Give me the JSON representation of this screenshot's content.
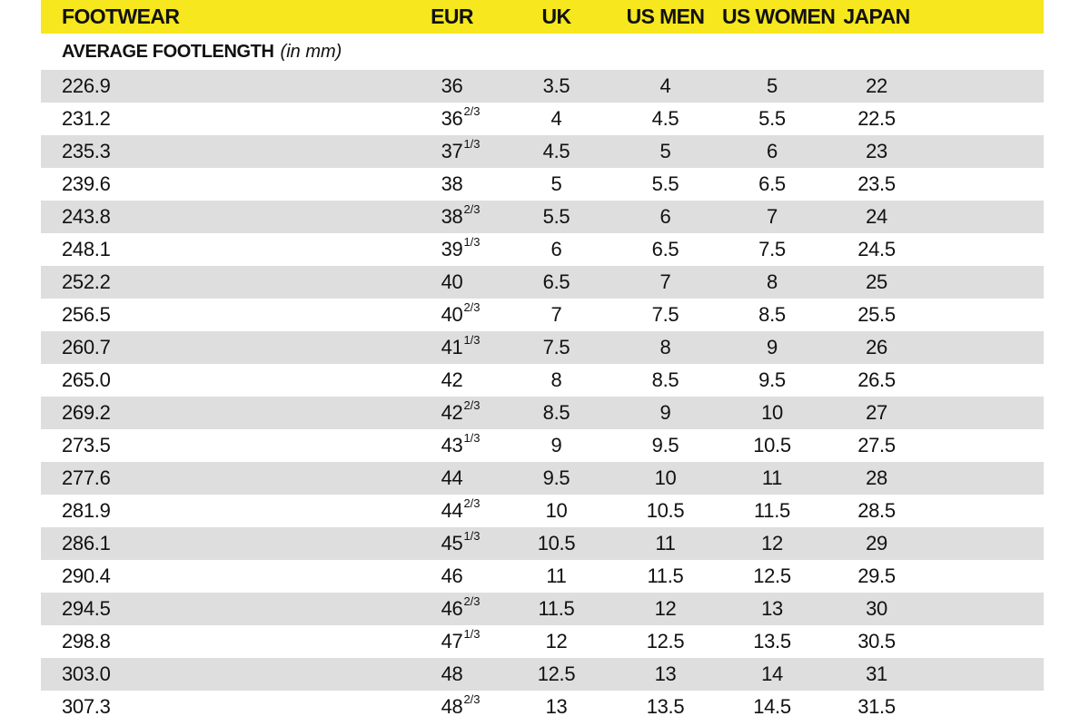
{
  "colors": {
    "header_bg": "#F6E71F",
    "row_alt_bg": "#DEDEDE",
    "text": "#111111",
    "page_bg": "#FFFFFF"
  },
  "table": {
    "headers": [
      {
        "key": "footlength",
        "label": "FOOTWEAR"
      },
      {
        "key": "eur",
        "label": "EUR"
      },
      {
        "key": "uk",
        "label": "UK"
      },
      {
        "key": "us-men",
        "label": "US MEN"
      },
      {
        "key": "us-women",
        "label": "US WOMEN"
      },
      {
        "key": "japan",
        "label": "JAPAN"
      }
    ],
    "subtitle": {
      "label": "AVERAGE FOOTLENGTH",
      "unit": "(in mm)"
    },
    "column_keys": [
      "footlength",
      "eur",
      "uk",
      "us-men",
      "us-women",
      "japan"
    ],
    "rows": [
      [
        "226.9",
        "36",
        "3.5",
        "4",
        "5",
        "22"
      ],
      [
        "231.2",
        "36^2/3",
        "4",
        "4.5",
        "5.5",
        "22.5"
      ],
      [
        "235.3",
        "37^1/3",
        "4.5",
        "5",
        "6",
        "23"
      ],
      [
        "239.6",
        "38",
        "5",
        "5.5",
        "6.5",
        "23.5"
      ],
      [
        "243.8",
        "38^2/3",
        "5.5",
        "6",
        "7",
        "24"
      ],
      [
        "248.1",
        "39^1/3",
        "6",
        "6.5",
        "7.5",
        "24.5"
      ],
      [
        "252.2",
        "40",
        "6.5",
        "7",
        "8",
        "25"
      ],
      [
        "256.5",
        "40^2/3",
        "7",
        "7.5",
        "8.5",
        "25.5"
      ],
      [
        "260.7",
        "41^1/3",
        "7.5",
        "8",
        "9",
        "26"
      ],
      [
        "265.0",
        "42",
        "8",
        "8.5",
        "9.5",
        "26.5"
      ],
      [
        "269.2",
        "42^2/3",
        "8.5",
        "9",
        "10",
        "27"
      ],
      [
        "273.5",
        "43^1/3",
        "9",
        "9.5",
        "10.5",
        "27.5"
      ],
      [
        "277.6",
        "44",
        "9.5",
        "10",
        "11",
        "28"
      ],
      [
        "281.9",
        "44^2/3",
        "10",
        "10.5",
        "11.5",
        "28.5"
      ],
      [
        "286.1",
        "45^1/3",
        "10.5",
        "11",
        "12",
        "29"
      ],
      [
        "290.4",
        "46",
        "11",
        "11.5",
        "12.5",
        "29.5"
      ],
      [
        "294.5",
        "46^2/3",
        "11.5",
        "12",
        "13",
        "30"
      ],
      [
        "298.8",
        "47^1/3",
        "12",
        "12.5",
        "13.5",
        "30.5"
      ],
      [
        "303.0",
        "48",
        "12.5",
        "13",
        "14",
        "31"
      ],
      [
        "307.3",
        "48^2/3",
        "13",
        "13.5",
        "14.5",
        "31.5"
      ]
    ]
  }
}
